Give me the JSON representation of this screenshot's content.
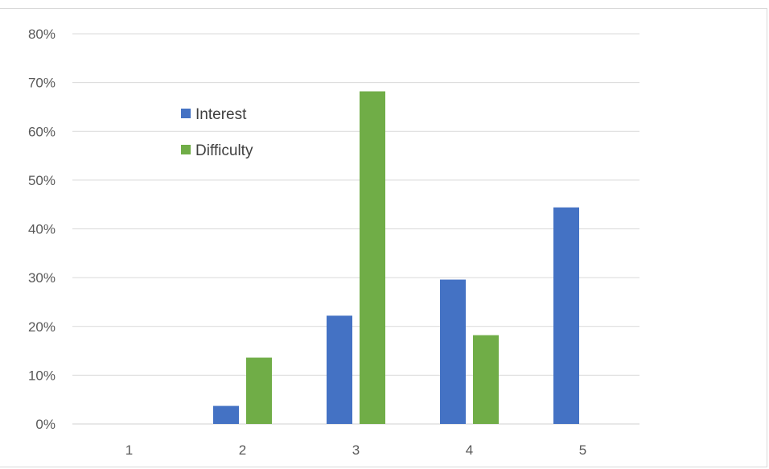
{
  "chart_data": {
    "type": "bar",
    "categories": [
      "1",
      "2",
      "3",
      "4",
      "5"
    ],
    "series": [
      {
        "name": "Interest",
        "values": [
          0,
          3.7,
          22.2,
          29.6,
          44.4
        ],
        "color": "#4472C4"
      },
      {
        "name": "Difficulty",
        "values": [
          0,
          13.6,
          68.2,
          18.2,
          0
        ],
        "color": "#70AD47"
      }
    ],
    "y_ticks": [
      "0%",
      "10%",
      "20%",
      "30%",
      "40%",
      "50%",
      "60%",
      "70%",
      "80%"
    ],
    "ylim": [
      0,
      80
    ],
    "y_unit": "%",
    "grid": true,
    "legend_position": "top-left-inside",
    "title": "",
    "xlabel": "",
    "ylabel": ""
  }
}
